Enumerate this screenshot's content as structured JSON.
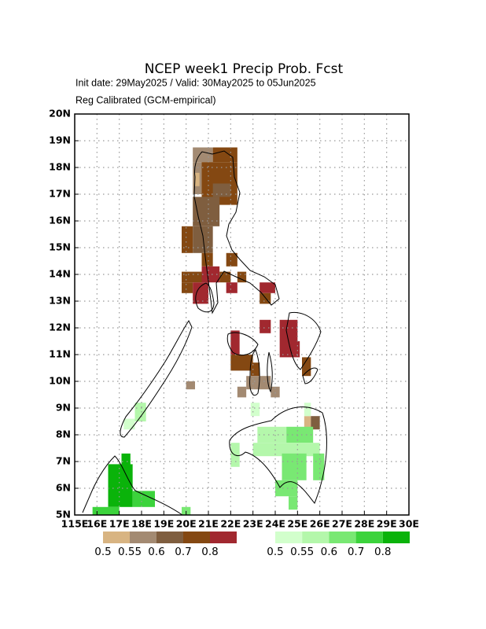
{
  "title": "NCEP week1 Precip Prob. Fcst",
  "subtitle": "Init date: 29May2025 / Valid: 30May2025 to 05Jun2025",
  "subtitle2": "Reg Calibrated (GCM-empirical)",
  "xlim": [
    115,
    130
  ],
  "ylim": [
    5,
    20
  ],
  "xticks": [
    {
      "value": 115,
      "label": "115E"
    },
    {
      "value": 116,
      "label": "16E"
    },
    {
      "value": 117,
      "label": "17E"
    },
    {
      "value": 118,
      "label": "18E"
    },
    {
      "value": 119,
      "label": "19E"
    },
    {
      "value": 120,
      "label": "20E"
    },
    {
      "value": 121,
      "label": "21E"
    },
    {
      "value": 122,
      "label": "22E"
    },
    {
      "value": 123,
      "label": "23E"
    },
    {
      "value": 124,
      "label": "24E"
    },
    {
      "value": 125,
      "label": "25E"
    },
    {
      "value": 126,
      "label": "26E"
    },
    {
      "value": 127,
      "label": "27E"
    },
    {
      "value": 128,
      "label": "28E"
    },
    {
      "value": 129,
      "label": "29E"
    },
    {
      "value": 130,
      "label": "30E"
    }
  ],
  "yticks": [
    {
      "value": 5,
      "label": "5N"
    },
    {
      "value": 6,
      "label": "6N"
    },
    {
      "value": 7,
      "label": "7N"
    },
    {
      "value": 8,
      "label": "8N"
    },
    {
      "value": 9,
      "label": "9N"
    },
    {
      "value": 10,
      "label": "10N"
    },
    {
      "value": 11,
      "label": "11N"
    },
    {
      "value": 12,
      "label": "12N"
    },
    {
      "value": 13,
      "label": "13N"
    },
    {
      "value": 14,
      "label": "14N"
    },
    {
      "value": 15,
      "label": "15N"
    },
    {
      "value": 16,
      "label": "16N"
    },
    {
      "value": 17,
      "label": "17N"
    },
    {
      "value": 18,
      "label": "18N"
    },
    {
      "value": 19,
      "label": "19N"
    },
    {
      "value": 20,
      "label": "20N"
    }
  ],
  "grid": true,
  "legend_dry": {
    "colors": [
      "#d8b482",
      "#a38a72",
      "#7f5e3f",
      "#844812",
      "#a1282f"
    ],
    "labels": [
      "0.5",
      "0.55",
      "0.6",
      "0.7",
      "0.8"
    ]
  },
  "legend_wet": {
    "colors": [
      "#d2ffcc",
      "#b4f7ab",
      "#79e873",
      "#3cd33c",
      "#0ab30a"
    ],
    "labels": [
      "0.5",
      "0.55",
      "0.6",
      "0.7",
      "0.8"
    ]
  },
  "cells": [
    [
      120.3,
      18.2,
      121.2,
      18.75,
      1
    ],
    [
      121.2,
      18.2,
      122.3,
      18.75,
      3
    ],
    [
      120.3,
      17.0,
      120.7,
      18.2,
      1
    ],
    [
      120.4,
      17.3,
      120.6,
      17.8,
      0
    ],
    [
      120.7,
      16.6,
      122.3,
      18.2,
      3
    ],
    [
      121.2,
      16.9,
      122.0,
      17.4,
      2
    ],
    [
      120.3,
      15.8,
      121.5,
      16.9,
      2
    ],
    [
      119.8,
      14.8,
      120.3,
      15.8,
      3
    ],
    [
      120.3,
      14.8,
      121.2,
      15.8,
      2
    ],
    [
      120.7,
      14.3,
      121.2,
      14.8,
      3
    ],
    [
      121.8,
      14.3,
      122.3,
      14.8,
      3
    ],
    [
      119.8,
      13.7,
      120.7,
      14.1,
      3
    ],
    [
      120.7,
      13.7,
      121.5,
      14.3,
      4
    ],
    [
      121.5,
      13.7,
      122.0,
      14.1,
      3
    ],
    [
      122.3,
      13.7,
      122.7,
      14.1,
      3
    ],
    [
      119.8,
      13.3,
      120.3,
      13.7,
      3
    ],
    [
      120.3,
      12.9,
      121.0,
      13.7,
      4
    ],
    [
      121.8,
      13.3,
      122.3,
      13.7,
      4
    ],
    [
      123.3,
      13.3,
      124.0,
      13.7,
      4
    ],
    [
      123.3,
      12.9,
      123.8,
      13.3,
      3
    ],
    [
      123.3,
      11.8,
      123.8,
      12.3,
      4
    ],
    [
      124.2,
      11.5,
      125.0,
      12.3,
      4
    ],
    [
      124.2,
      10.9,
      125.1,
      11.5,
      4
    ],
    [
      122.0,
      11.0,
      122.4,
      11.9,
      4
    ],
    [
      122.0,
      10.4,
      123.0,
      11.0,
      3
    ],
    [
      122.9,
      10.2,
      123.3,
      10.7,
      3
    ],
    [
      122.7,
      9.7,
      123.8,
      10.2,
      1
    ],
    [
      122.3,
      9.4,
      122.7,
      9.8,
      1
    ],
    [
      123.8,
      9.4,
      124.2,
      9.8,
      1
    ],
    [
      125.2,
      10.2,
      125.6,
      10.9,
      3
    ],
    [
      120.0,
      9.7,
      120.4,
      10.0,
      1
    ],
    [
      125.3,
      8.2,
      125.6,
      8.7,
      0
    ],
    [
      125.6,
      8.2,
      126.0,
      8.7,
      2
    ],
    [
      125.3,
      8.7,
      125.6,
      9.2,
      5
    ],
    [
      123.2,
      7.7,
      124.5,
      8.3,
      6
    ],
    [
      124.5,
      7.7,
      125.7,
      8.3,
      7
    ],
    [
      123.0,
      7.2,
      126.0,
      7.7,
      6
    ],
    [
      124.3,
      6.3,
      125.4,
      7.3,
      7
    ],
    [
      124.0,
      5.7,
      125.0,
      6.3,
      7
    ],
    [
      124.6,
      5.2,
      125.0,
      5.7,
      7
    ],
    [
      125.7,
      6.3,
      126.2,
      7.3,
      7
    ],
    [
      122.0,
      6.8,
      122.4,
      7.7,
      6
    ],
    [
      122.9,
      8.7,
      123.3,
      9.2,
      5
    ],
    [
      117.7,
      8.5,
      118.2,
      9.2,
      6
    ],
    [
      117.2,
      8.2,
      117.7,
      8.6,
      5
    ],
    [
      116.5,
      5.3,
      117.6,
      6.9,
      9
    ],
    [
      117.1,
      6.8,
      117.5,
      7.3,
      9
    ],
    [
      117.6,
      5.3,
      118.6,
      5.9,
      8
    ],
    [
      115.8,
      5.0,
      117.0,
      5.3,
      8
    ],
    [
      119.8,
      5.0,
      120.2,
      5.3,
      7
    ]
  ]
}
